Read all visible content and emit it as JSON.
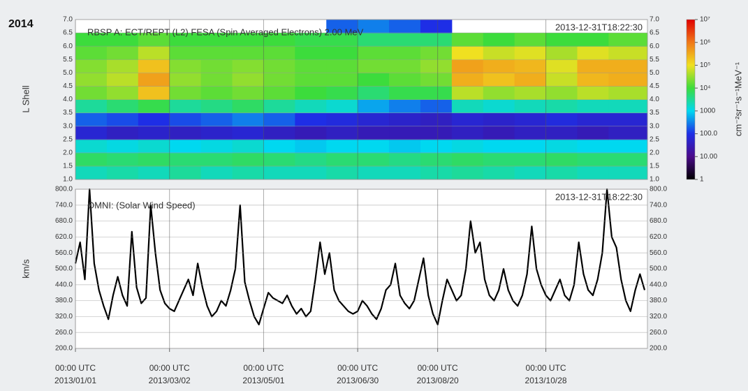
{
  "heading": "2014",
  "chart_data": [
    {
      "type": "heatmap",
      "title": "RBSP A: ECT/REPT (L2) FESA (Spin Averaged Electrons) 2.00 MeV",
      "timestamp": "2013-12-31T18:22:30",
      "ylabel": "L Shell",
      "xlim": [
        0,
        364.77
      ],
      "x_edges": [
        0,
        20,
        40,
        60,
        80,
        100,
        120,
        140,
        160,
        180,
        200,
        220,
        240,
        260,
        280,
        300,
        320,
        340,
        364.77
      ],
      "y_edges": [
        1,
        1.5,
        2,
        2.5,
        3,
        3.5,
        4,
        4.5,
        5,
        5.5,
        6,
        6.5,
        7
      ],
      "z": [
        [
          2000,
          2500,
          2000,
          3000,
          2000,
          2500,
          2000,
          2000,
          2500,
          2000,
          2000,
          2500,
          3000,
          2500,
          2000,
          2500,
          2000,
          2000
        ],
        [
          6000,
          5000,
          6000,
          5000,
          5000,
          6000,
          5000,
          4000,
          5000,
          5000,
          4000,
          5000,
          6000,
          5000,
          5000,
          6000,
          5000,
          5000
        ],
        [
          1500,
          1200,
          1500,
          1000,
          1200,
          1500,
          1000,
          800,
          1000,
          1000,
          800,
          1000,
          1200,
          1000,
          1000,
          1200,
          1000,
          1000
        ],
        [
          60,
          40,
          50,
          40,
          50,
          60,
          40,
          30,
          40,
          30,
          30,
          30,
          40,
          30,
          40,
          40,
          30,
          40
        ],
        [
          200,
          150,
          100,
          150,
          200,
          300,
          200,
          100,
          80,
          60,
          50,
          40,
          60,
          50,
          60,
          80,
          60,
          60
        ],
        [
          3000,
          5000,
          8000,
          3000,
          4000,
          6000,
          3000,
          2000,
          1500,
          500,
          300,
          200,
          2000,
          1500,
          2000,
          2500,
          2000,
          2000
        ],
        [
          20000,
          30000,
          200000,
          20000,
          15000,
          20000,
          15000,
          10000,
          8000,
          5000,
          8000,
          8000,
          50000,
          30000,
          40000,
          30000,
          50000,
          40000
        ],
        [
          30000,
          50000,
          400000,
          30000,
          20000,
          30000,
          20000,
          15000,
          15000,
          10000,
          15000,
          20000,
          300000,
          200000,
          300000,
          60000,
          250000,
          300000
        ],
        [
          25000,
          40000,
          200000,
          25000,
          20000,
          25000,
          20000,
          15000,
          15000,
          20000,
          20000,
          30000,
          400000,
          300000,
          250000,
          80000,
          300000,
          300000
        ],
        [
          15000,
          20000,
          50000,
          15000,
          15000,
          15000,
          15000,
          10000,
          10000,
          15000,
          15000,
          20000,
          100000,
          60000,
          80000,
          40000,
          80000,
          60000
        ],
        [
          10000,
          10000,
          15000,
          10000,
          10000,
          10000,
          10000,
          8000,
          8000,
          5000,
          5000,
          5000,
          15000,
          10000,
          15000,
          10000,
          10000,
          15000
        ],
        [
          null,
          null,
          null,
          null,
          null,
          null,
          null,
          null,
          200,
          300,
          200,
          100,
          null,
          null,
          null,
          null,
          null,
          null
        ]
      ],
      "ylim": [
        1,
        7
      ],
      "yticks": [
        {
          "value": 1,
          "label": "1.0"
        },
        {
          "value": 1.5,
          "label": "1.5"
        },
        {
          "value": 2,
          "label": "2.0"
        },
        {
          "value": 2.5,
          "label": "2.5"
        },
        {
          "value": 3,
          "label": "3.0"
        },
        {
          "value": 3.5,
          "label": "3.5"
        },
        {
          "value": 4,
          "label": "4.0"
        },
        {
          "value": 4.5,
          "label": "4.5"
        },
        {
          "value": 5,
          "label": "5.0"
        },
        {
          "value": 5.5,
          "label": "5.5"
        },
        {
          "value": 6,
          "label": "6.0"
        },
        {
          "value": 6.5,
          "label": "6.5"
        },
        {
          "value": 7,
          "label": "7.0"
        }
      ],
      "grid": true,
      "colorbar": {
        "label": "cm⁻²sr⁻¹s⁻¹MeV⁻¹",
        "log": true,
        "lim": [
          1,
          10000000
        ],
        "ticks": [
          1,
          {
            "value": 10,
            "label": "10.00"
          },
          {
            "value": 100,
            "label": "100.0"
          },
          1000,
          {
            "value": 10000,
            "label": "10⁴"
          },
          {
            "value": 100000,
            "label": "10⁵"
          },
          {
            "value": 1000000,
            "label": "10⁶"
          },
          {
            "value": 10000000,
            "label": "10⁷"
          }
        ],
        "colors": [
          "#000000",
          "#4a0a8a",
          "#1e2ee6",
          "#00d8f0",
          "#3cdc3c",
          "#f0e020",
          "#f07818",
          "#e00000"
        ]
      }
    },
    {
      "type": "line",
      "title": "OMNI: (Solar Wind Speed)",
      "timestamp": "2013-12-31T18:22:30",
      "ylabel": "km/s",
      "color": "#000000",
      "xlim": [
        0,
        364.77
      ],
      "xticks": [
        {
          "value": 0,
          "label": "00:00 UTC\n2013/01/01"
        },
        {
          "value": 60,
          "label": "00:00 UTC\n2013/03/02"
        },
        {
          "value": 120,
          "label": "00:00 UTC\n2013/05/01"
        },
        {
          "value": 180,
          "label": "00:00 UTC\n2013/06/30"
        },
        {
          "value": 231,
          "label": "00:00 UTC\n2013/08/20"
        },
        {
          "value": 300,
          "label": "00:00 UTC\n2013/10/28"
        }
      ],
      "ylim": [
        200,
        800
      ],
      "yticks": [
        {
          "value": 200,
          "label": "200.0"
        },
        {
          "value": 260,
          "label": "260.0"
        },
        {
          "value": 320,
          "label": "320.0"
        },
        {
          "value": 380,
          "label": "380.0"
        },
        {
          "value": 440,
          "label": "440.0"
        },
        {
          "value": 500,
          "label": "500.0"
        },
        {
          "value": 560,
          "label": "560.0"
        },
        {
          "value": 620,
          "label": "620.0"
        },
        {
          "value": 680,
          "label": "680.0"
        },
        {
          "value": 740,
          "label": "740.0"
        },
        {
          "value": 800,
          "label": "800.0"
        }
      ],
      "grid": true,
      "x": [
        0,
        3,
        6,
        9,
        12,
        15,
        18,
        21,
        24,
        27,
        30,
        33,
        36,
        39,
        42,
        45,
        48,
        51,
        54,
        57,
        60,
        63,
        66,
        69,
        72,
        75,
        78,
        81,
        84,
        87,
        90,
        93,
        96,
        99,
        102,
        105,
        108,
        111,
        114,
        117,
        120,
        123,
        126,
        129,
        132,
        135,
        138,
        141,
        144,
        147,
        150,
        153,
        156,
        159,
        162,
        165,
        168,
        171,
        174,
        177,
        180,
        183,
        186,
        189,
        192,
        195,
        198,
        201,
        204,
        207,
        210,
        213,
        216,
        219,
        222,
        225,
        228,
        231,
        234,
        237,
        240,
        243,
        246,
        249,
        252,
        255,
        258,
        261,
        264,
        267,
        270,
        273,
        276,
        279,
        282,
        285,
        288,
        291,
        294,
        297,
        300,
        303,
        306,
        309,
        312,
        315,
        318,
        321,
        324,
        327,
        330,
        333,
        336,
        339,
        342,
        345,
        348,
        351,
        354,
        357,
        360,
        363
      ],
      "values": [
        520,
        600,
        460,
        800,
        520,
        420,
        360,
        310,
        400,
        470,
        400,
        360,
        640,
        430,
        370,
        390,
        740,
        560,
        420,
        370,
        350,
        340,
        380,
        420,
        460,
        400,
        520,
        430,
        360,
        320,
        340,
        380,
        360,
        420,
        500,
        740,
        450,
        380,
        320,
        290,
        350,
        410,
        390,
        380,
        370,
        400,
        360,
        330,
        350,
        320,
        340,
        460,
        600,
        480,
        560,
        420,
        380,
        360,
        340,
        330,
        340,
        380,
        360,
        330,
        310,
        350,
        420,
        440,
        520,
        400,
        370,
        350,
        380,
        460,
        540,
        400,
        330,
        290,
        380,
        460,
        420,
        380,
        400,
        500,
        680,
        560,
        600,
        460,
        400,
        380,
        420,
        500,
        420,
        380,
        360,
        400,
        480,
        660,
        500,
        440,
        400,
        380,
        420,
        460,
        400,
        380,
        440,
        600,
        480,
        420,
        400,
        460,
        560,
        800,
        620,
        580,
        460,
        380,
        340,
        420,
        480,
        420
      ]
    }
  ]
}
